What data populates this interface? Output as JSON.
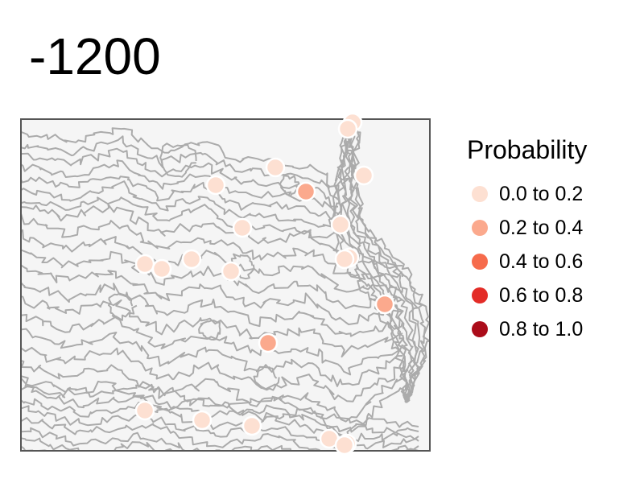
{
  "title": "-1200",
  "legend": {
    "title": "Probability",
    "items": [
      {
        "label": "0.0 to 0.2",
        "color": "#fde0d2"
      },
      {
        "label": "0.2 to 0.4",
        "color": "#fba98d"
      },
      {
        "label": "0.4 to 0.6",
        "color": "#f66b4c"
      },
      {
        "label": "0.6 to 0.8",
        "color": "#e32c27"
      },
      {
        "label": "0.8 to 1.0",
        "color": "#ab0c1a"
      }
    ]
  },
  "map": {
    "background": "#f5f5f5",
    "contour_color": "#ababab",
    "border_color": "#555555"
  },
  "sites": [
    {
      "id": "s1",
      "bin": 0
    },
    {
      "id": "s2",
      "bin": 0
    },
    {
      "id": "s3",
      "bin": 0
    },
    {
      "id": "s4",
      "bin": 0
    },
    {
      "id": "s5",
      "bin": 0
    },
    {
      "id": "s6",
      "bin": 0
    },
    {
      "id": "s7",
      "bin": 0
    },
    {
      "id": "s8",
      "bin": 0
    },
    {
      "id": "s9",
      "bin": 0
    },
    {
      "id": "s10",
      "bin": 0
    },
    {
      "id": "s11",
      "bin": 1
    },
    {
      "id": "s12",
      "bin": 0
    },
    {
      "id": "s13",
      "bin": 0
    },
    {
      "id": "s14",
      "bin": 0
    },
    {
      "id": "s15",
      "bin": 1
    },
    {
      "id": "s16",
      "bin": 1
    },
    {
      "id": "s17",
      "bin": 0
    },
    {
      "id": "s18",
      "bin": 0
    },
    {
      "id": "s19",
      "bin": 0
    },
    {
      "id": "s20",
      "bin": 0
    },
    {
      "id": "s21",
      "bin": 0
    },
    {
      "id": "s22",
      "bin": 0
    }
  ]
}
